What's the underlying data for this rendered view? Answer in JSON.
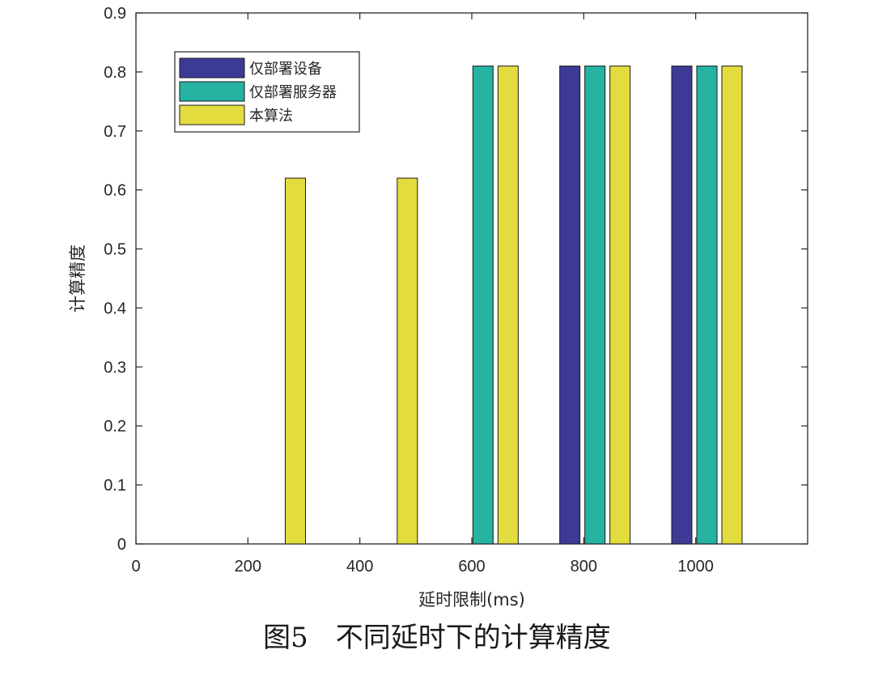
{
  "caption": "图5　不同延时下的计算精度",
  "colors": {
    "series1": "#3d3a96",
    "series2": "#26b3a1",
    "series3": "#e3dc3f",
    "axis": "#262626"
  },
  "chart_data": {
    "type": "bar",
    "title": "",
    "xlabel": "延时限制(ms)",
    "ylabel": "计算精度",
    "xlim": [
      0,
      1200
    ],
    "ylim": [
      0,
      0.9
    ],
    "x_ticks": [
      0,
      200,
      400,
      600,
      800,
      1000
    ],
    "y_ticks": [
      0,
      0.1,
      0.2,
      0.3,
      0.4,
      0.5,
      0.6,
      0.7,
      0.8,
      0.9
    ],
    "categories": [
      240,
      440,
      620,
      820,
      1020
    ],
    "legend_position": "top-left",
    "series": [
      {
        "name": "仅部署设备",
        "values": [
          0,
          0,
          0,
          0.81,
          0.81
        ]
      },
      {
        "name": "仅部署服务器",
        "values": [
          0,
          0,
          0.81,
          0.81,
          0.81
        ]
      },
      {
        "name": "本算法",
        "values": [
          0.62,
          0.62,
          0.81,
          0.81,
          0.81
        ]
      }
    ]
  }
}
